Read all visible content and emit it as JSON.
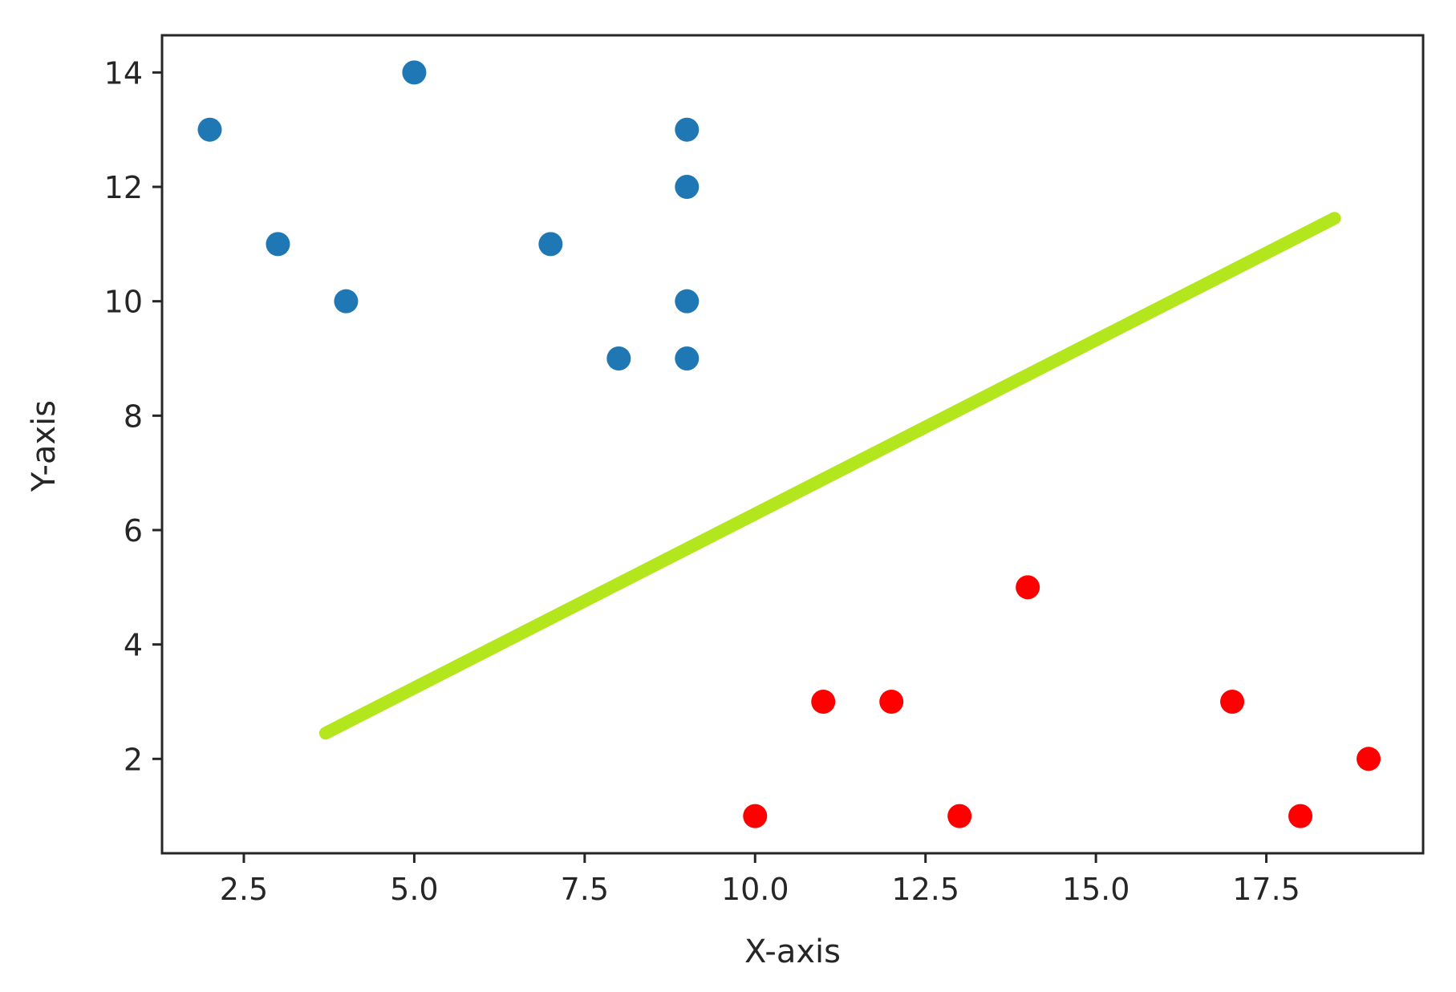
{
  "chart_data": {
    "type": "scatter",
    "xlabel": "X-axis",
    "ylabel": "Y-axis",
    "xlim": [
      1.3,
      19.8
    ],
    "ylim": [
      0.35,
      14.65
    ],
    "xticks": [
      2.5,
      5.0,
      7.5,
      10.0,
      12.5,
      15.0,
      17.5
    ],
    "xtick_labels": [
      "2.5",
      "5.0",
      "7.5",
      "10.0",
      "12.5",
      "15.0",
      "17.5"
    ],
    "yticks": [
      2,
      4,
      6,
      8,
      10,
      12,
      14
    ],
    "ytick_labels": [
      "2",
      "4",
      "6",
      "8",
      "10",
      "12",
      "14"
    ],
    "grid": false,
    "series": [
      {
        "kind": "scatter",
        "color": "#1f77b4",
        "x": [
          2,
          3,
          4,
          5,
          7,
          8,
          9,
          9,
          9,
          9
        ],
        "y": [
          13,
          11,
          10,
          14,
          11,
          9,
          9,
          10,
          12,
          13
        ]
      },
      {
        "kind": "scatter",
        "color": "#ff0000",
        "x": [
          10,
          11,
          12,
          13,
          14,
          17,
          18,
          19
        ],
        "y": [
          1,
          3,
          3,
          1,
          5,
          3,
          1,
          2
        ]
      },
      {
        "kind": "line",
        "color": "#b4e61e",
        "x": [
          3.7,
          18.5
        ],
        "y": [
          2.45,
          11.45
        ]
      }
    ]
  }
}
